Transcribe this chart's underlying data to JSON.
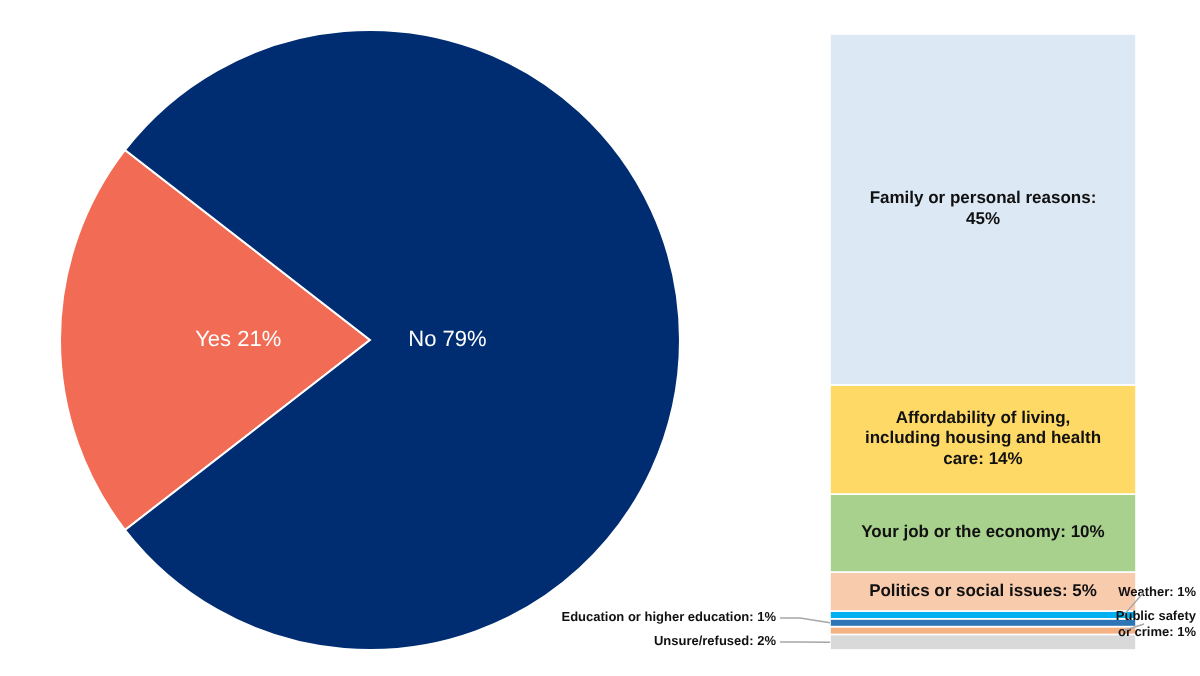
{
  "chart_data": [
    {
      "type": "pie",
      "categories": [
        "Yes",
        "No"
      ],
      "values": [
        21,
        79
      ],
      "colors": [
        "#f26b55",
        "#002d72"
      ],
      "value_labels": [
        "21%",
        "79%"
      ]
    },
    {
      "type": "bar",
      "stacked": true,
      "categories": [
        null
      ],
      "series": [
        {
          "color": "#d9d9d9",
          "values": [
            2
          ],
          "value_labels": [
            "Unsure/refused: 2%"
          ]
        },
        {
          "color": "#f4b183",
          "values": [
            1
          ],
          "value_labels": [
            "Public safety or crime: 1%"
          ]
        },
        {
          "color": "#2e75b6",
          "values": [
            1
          ],
          "value_labels": [
            "Education or higher education: 1%"
          ]
        },
        {
          "color": "#00b0f0",
          "values": [
            1
          ],
          "value_labels": [
            "Weather: 1%"
          ]
        },
        {
          "color": "#f8cbad",
          "values": [
            5
          ],
          "value_labels": [
            "Politics or social issues: 5%"
          ]
        },
        {
          "color": "#a9d18e",
          "values": [
            10
          ],
          "value_labels": [
            "Your job or the economy: 10%"
          ]
        },
        {
          "color": "#ffd966",
          "values": [
            14
          ],
          "value_labels": [
            "Affordability of living, including housing and health care: 14%"
          ]
        },
        {
          "color": "#dde8f5",
          "values": [
            45
          ],
          "value_labels": [
            "Family or personal reasons: 45%"
          ]
        }
      ]
    }
  ]
}
